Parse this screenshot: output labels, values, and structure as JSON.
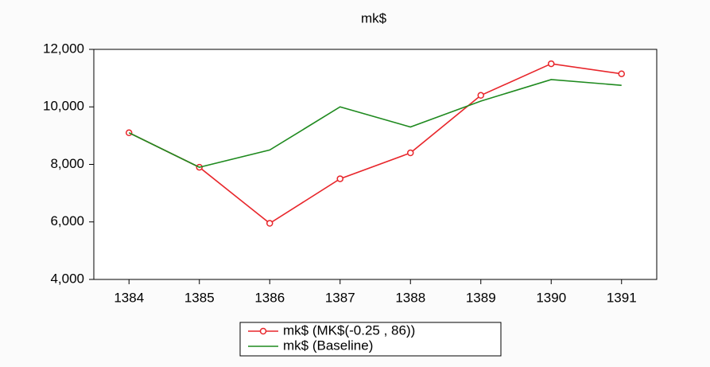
{
  "chart_data": {
    "type": "line",
    "title": "mk$",
    "categories": [
      "1384",
      "1385",
      "1386",
      "1387",
      "1388",
      "1389",
      "1390",
      "1391"
    ],
    "series": [
      {
        "name": "mk$ (MK$(-0.25 , 86))",
        "color": "#e8262b",
        "marker": "circle",
        "values": [
          9100,
          7900,
          5950,
          7500,
          8400,
          10400,
          11500,
          11150
        ]
      },
      {
        "name": "mk$ (Baseline)",
        "color": "#1f8a1f",
        "values": [
          9100,
          7900,
          8500,
          10000,
          9300,
          10200,
          10950,
          10750
        ]
      }
    ],
    "ylim": [
      4000,
      12000
    ],
    "yticks": [
      {
        "value": 4000,
        "label": "4,000"
      },
      {
        "value": 6000,
        "label": "6,000"
      },
      {
        "value": 8000,
        "label": "8,000"
      },
      {
        "value": 10000,
        "label": "10,000"
      },
      {
        "value": 12000,
        "label": "12,000"
      }
    ],
    "grid": false,
    "legend": "bottom"
  }
}
